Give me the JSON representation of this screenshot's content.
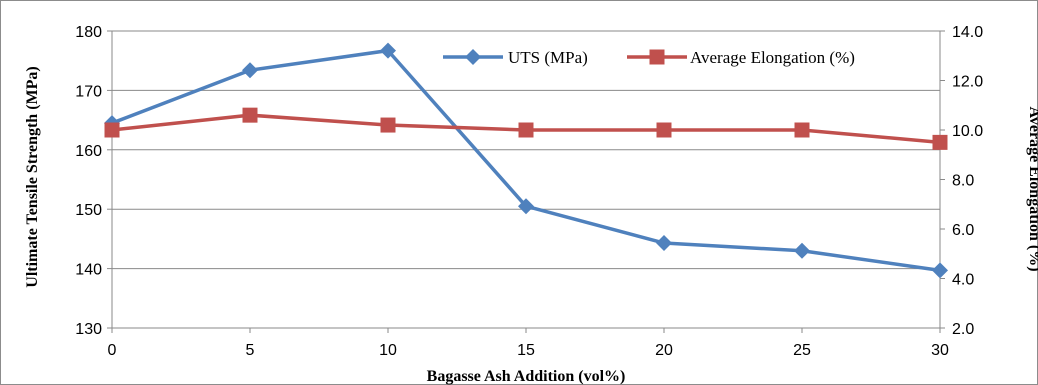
{
  "chart_data": {
    "type": "line",
    "title": "",
    "xlabel": "Bagasse Ash Addition  (vol%)",
    "ylabel": "Ultimate Tensile Strength (MPa)",
    "y2label": "Average Elongation (%)",
    "x": [
      0,
      5,
      10,
      15,
      20,
      25,
      30
    ],
    "xlim": [
      0,
      30
    ],
    "ylim": [
      130,
      180
    ],
    "y2lim": [
      2.0,
      14.0
    ],
    "x_ticks": [
      "0",
      "5",
      "10",
      "15",
      "20",
      "25",
      "30"
    ],
    "y_ticks": [
      "130",
      "140",
      "150",
      "160",
      "170",
      "180"
    ],
    "y2_ticks": [
      "2.0",
      "4.0",
      "6.0",
      "8.0",
      "10.0",
      "12.0",
      "14.0"
    ],
    "grid": "horizontal",
    "legend_position": "top-right",
    "series": [
      {
        "name": "UTS (MPa)",
        "axis": "left",
        "color": "#4f81bd",
        "marker": "diamond",
        "values": [
          164.5,
          173.4,
          176.7,
          150.5,
          144.3,
          143.0,
          139.7
        ]
      },
      {
        "name": "Average Elongation (%)",
        "axis": "right",
        "color": "#c0504d",
        "marker": "square",
        "values": [
          10.0,
          10.6,
          10.2,
          10.0,
          10.0,
          10.0,
          9.5
        ]
      }
    ]
  }
}
